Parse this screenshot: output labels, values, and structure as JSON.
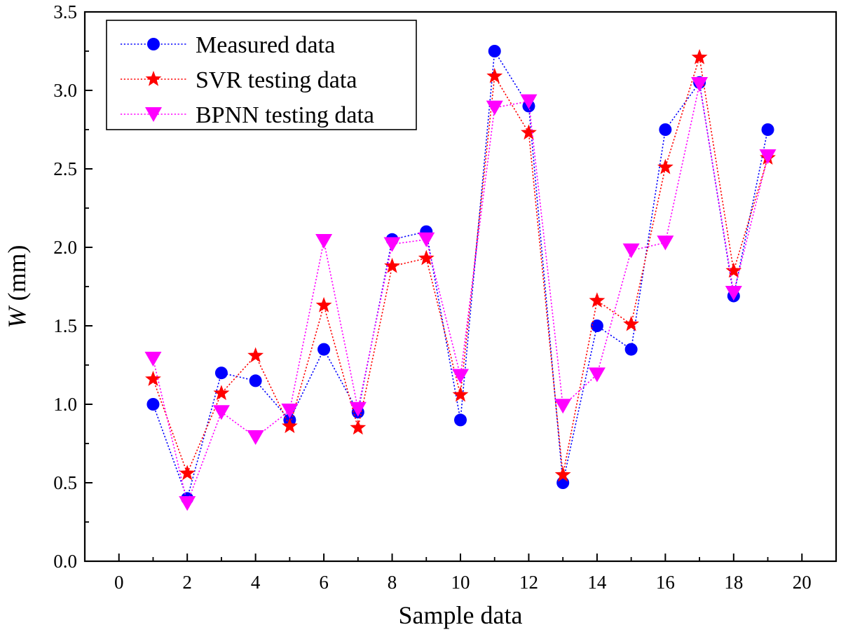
{
  "chart_data": {
    "type": "line",
    "xlabel": "Sample data",
    "ylabel_var": "W",
    "ylabel_unit": " (mm)",
    "xlim": [
      -1,
      21
    ],
    "ylim": [
      0.0,
      3.5
    ],
    "xticks": [
      "0",
      "2",
      "4",
      "6",
      "8",
      "10",
      "12",
      "14",
      "16",
      "18",
      "20"
    ],
    "yticks": [
      "0.0",
      "0.5",
      "1.0",
      "1.5",
      "2.0",
      "2.5",
      "3.0",
      "3.5"
    ],
    "grid": false,
    "legend_position": "top-left",
    "x": [
      1,
      2,
      3,
      4,
      5,
      6,
      7,
      8,
      9,
      10,
      11,
      12,
      13,
      14,
      15,
      16,
      17,
      18,
      19
    ],
    "series": [
      {
        "name": "Measured data",
        "marker": "circle",
        "color": "#0000FF",
        "values": [
          1.0,
          0.4,
          1.2,
          1.15,
          0.9,
          1.35,
          0.95,
          2.05,
          2.1,
          0.9,
          3.25,
          2.9,
          0.5,
          1.5,
          1.35,
          2.75,
          3.05,
          1.69,
          2.75
        ]
      },
      {
        "name": "SVR testing data",
        "marker": "star",
        "color": "#FF0000",
        "values": [
          1.16,
          0.56,
          1.07,
          1.31,
          0.86,
          1.63,
          0.85,
          1.88,
          1.93,
          1.06,
          3.09,
          2.73,
          0.55,
          1.66,
          1.51,
          2.51,
          3.21,
          1.85,
          2.57
        ]
      },
      {
        "name": "BPNN testing data",
        "marker": "triangle-down",
        "color": "#FF00FF",
        "values": [
          1.29,
          0.37,
          0.95,
          0.79,
          0.96,
          2.04,
          0.97,
          2.02,
          2.05,
          1.18,
          2.89,
          2.93,
          0.99,
          1.19,
          1.98,
          2.03,
          3.04,
          1.71,
          2.58
        ]
      }
    ]
  }
}
